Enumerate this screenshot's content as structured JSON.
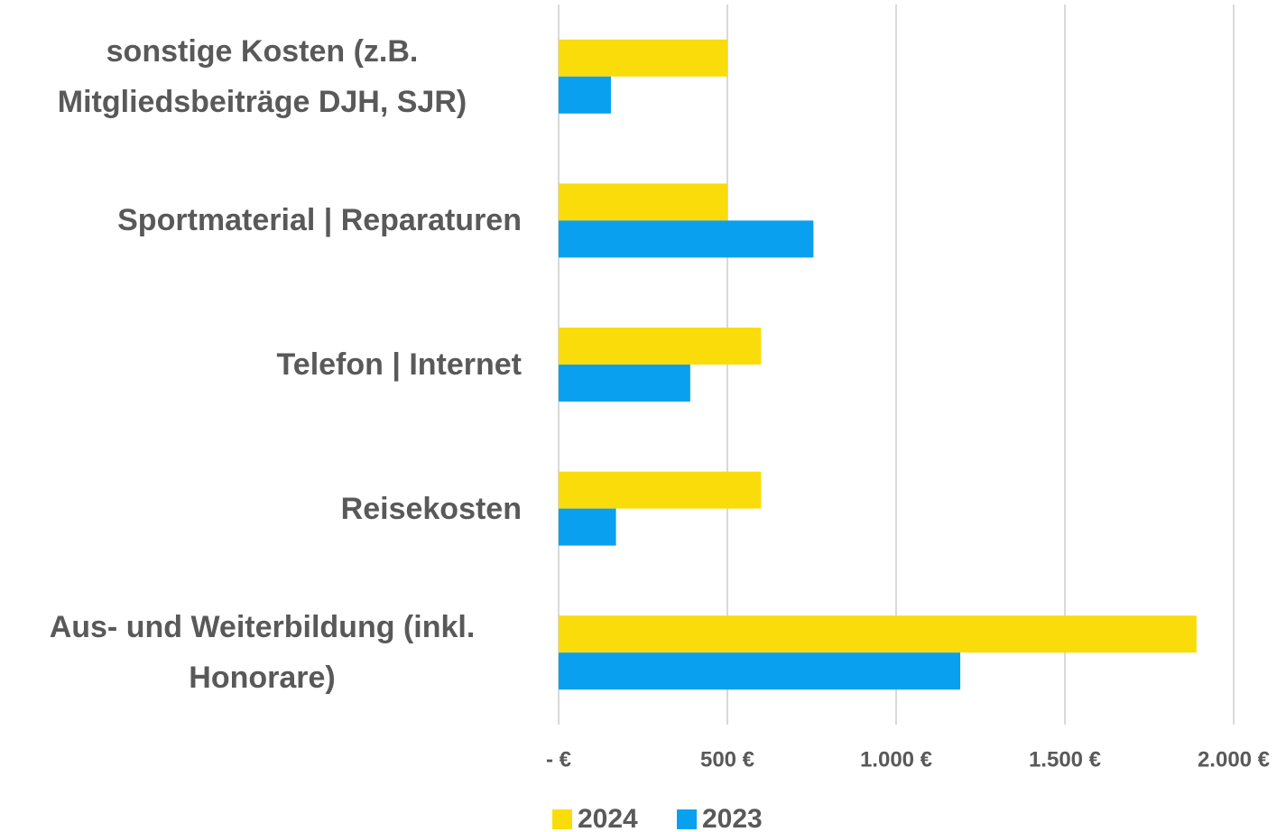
{
  "chart_data": {
    "type": "bar",
    "orientation": "horizontal",
    "categories": [
      "sonstige Kosten (z.B. Mitgliedsbeiträge DJH, SJR)",
      "Sportmaterial | Reparaturen",
      "Telefon | Internet",
      "Reisekosten",
      "Aus- und Weiterbildung (inkl. Honorare)"
    ],
    "series": [
      {
        "name": "2024",
        "color": "#FADC0A",
        "values": [
          500,
          500,
          600,
          600,
          1890
        ]
      },
      {
        "name": "2023",
        "color": "#0AA0F0",
        "values": [
          155,
          755,
          390,
          170,
          1190
        ]
      }
    ],
    "xlim": [
      0,
      2000
    ],
    "xticks": [
      {
        "value": 0,
        "label": "- €"
      },
      {
        "value": 500,
        "label": "500 €"
      },
      {
        "value": 1000,
        "label": "1.000 €"
      },
      {
        "value": 1500,
        "label": "1.500 €"
      },
      {
        "value": 2000,
        "label": "2.000 €"
      }
    ],
    "grid": true,
    "legend": "bottom"
  }
}
